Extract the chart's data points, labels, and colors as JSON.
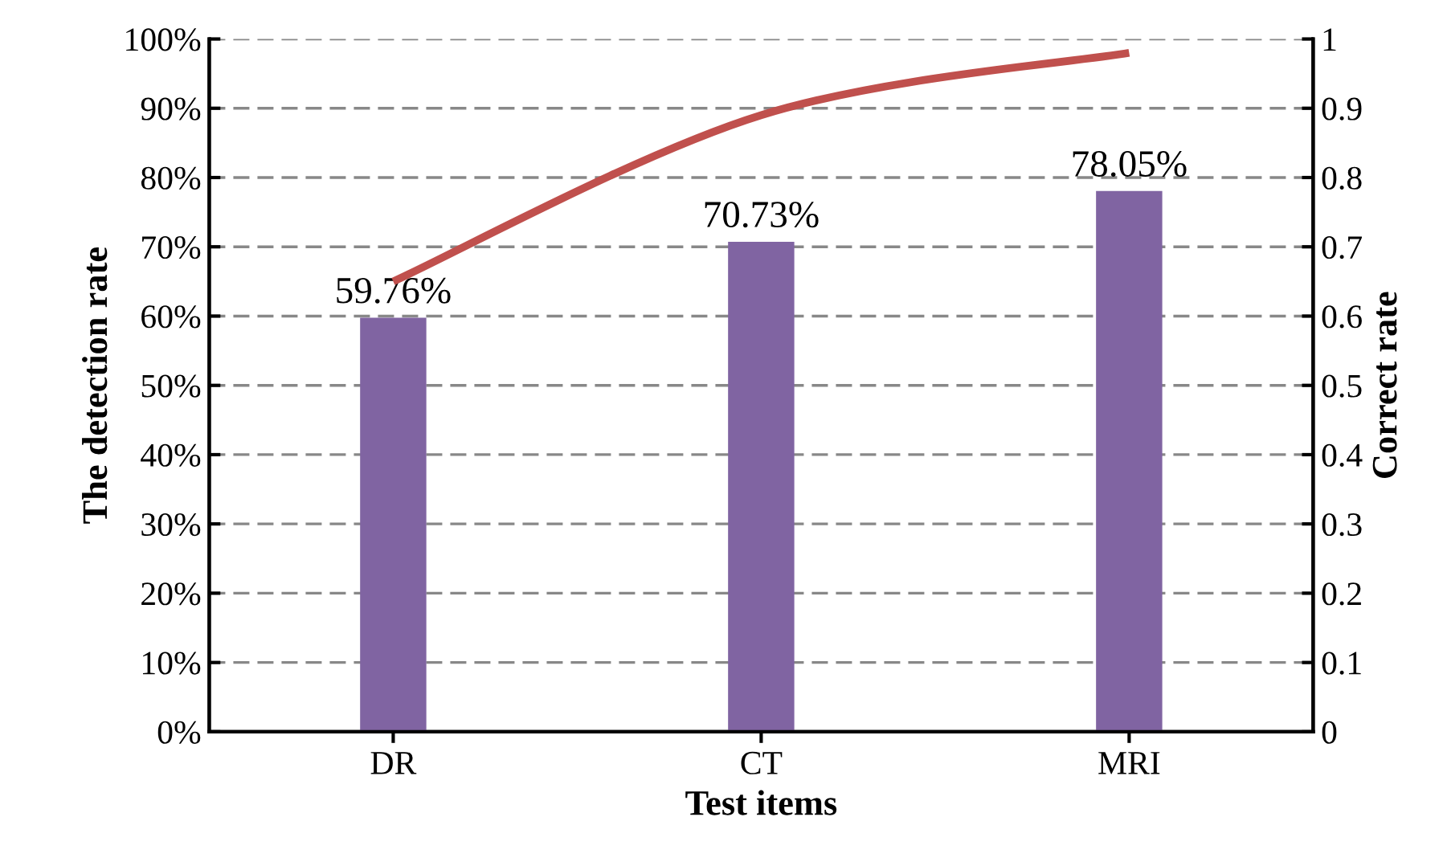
{
  "chart_data": {
    "type": "bar",
    "xlabel": "Test items",
    "ylabel": "The detection rate",
    "y2label": "Correct rate",
    "categories": [
      "DR",
      "CT",
      "MRI"
    ],
    "series": [
      {
        "color": "#8064a2",
        "values": [
          59.76,
          70.73,
          78.05
        ],
        "value_labels": [
          "59.76%",
          "70.73%",
          "78.05%"
        ]
      },
      {
        "type": "line",
        "axis": "y2",
        "color": "#c0504d",
        "values": [
          0.65,
          0.89,
          0.98
        ],
        "marker": "none",
        "line_style": "solid"
      }
    ],
    "ylim": [
      0,
      100
    ],
    "yticks": [
      {
        "value": 0,
        "label": "0%"
      },
      {
        "value": 10,
        "label": "10%"
      },
      {
        "value": 20,
        "label": "20%"
      },
      {
        "value": 30,
        "label": "30%"
      },
      {
        "value": 40,
        "label": "40%"
      },
      {
        "value": 50,
        "label": "50%"
      },
      {
        "value": 60,
        "label": "60%"
      },
      {
        "value": 70,
        "label": "70%"
      },
      {
        "value": 80,
        "label": "80%"
      },
      {
        "value": 90,
        "label": "90%"
      },
      {
        "value": 100,
        "label": "100%"
      }
    ],
    "y2lim": [
      0,
      1
    ],
    "y2ticks": [
      0,
      0.1,
      0.2,
      0.3,
      0.4,
      0.5,
      0.6,
      0.7,
      0.8,
      0.9,
      1
    ],
    "grid": "y"
  }
}
